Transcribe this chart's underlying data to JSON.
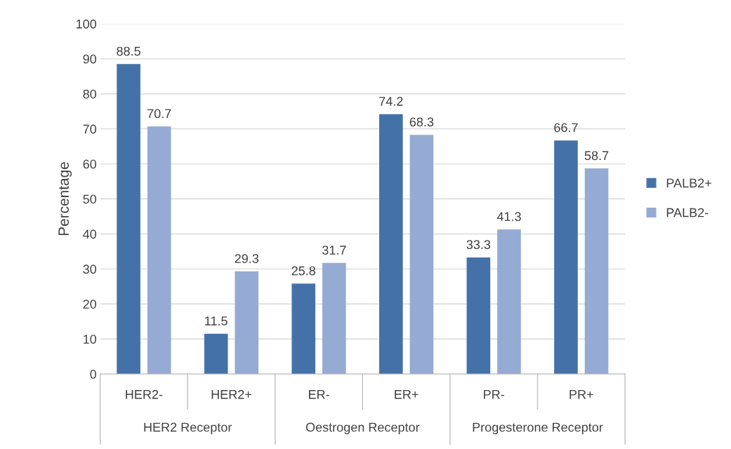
{
  "chart_data": {
    "type": "bar",
    "ylabel": "Percentage",
    "categories": [
      "HER2-",
      "HER2+",
      "ER-",
      "ER+",
      "PR-",
      "PR+"
    ],
    "series": [
      {
        "name": "PALB2+",
        "color": "#4472a8",
        "values": [
          88.5,
          11.5,
          25.8,
          74.2,
          33.3,
          66.7
        ]
      },
      {
        "name": "PALB2-",
        "color": "#95abd3",
        "values": [
          70.7,
          29.3,
          31.7,
          68.3,
          41.3,
          58.7
        ]
      }
    ],
    "annotations": [
      "HER2 Receptor",
      "Oestrogen Receptor",
      "Progesterone Receptor"
    ],
    "ylim": [
      0,
      100
    ],
    "yticks": [
      0,
      10,
      20,
      30,
      40,
      50,
      60,
      70,
      80,
      90,
      100
    ],
    "grid": "y",
    "legend": "right",
    "data_labels": true
  }
}
